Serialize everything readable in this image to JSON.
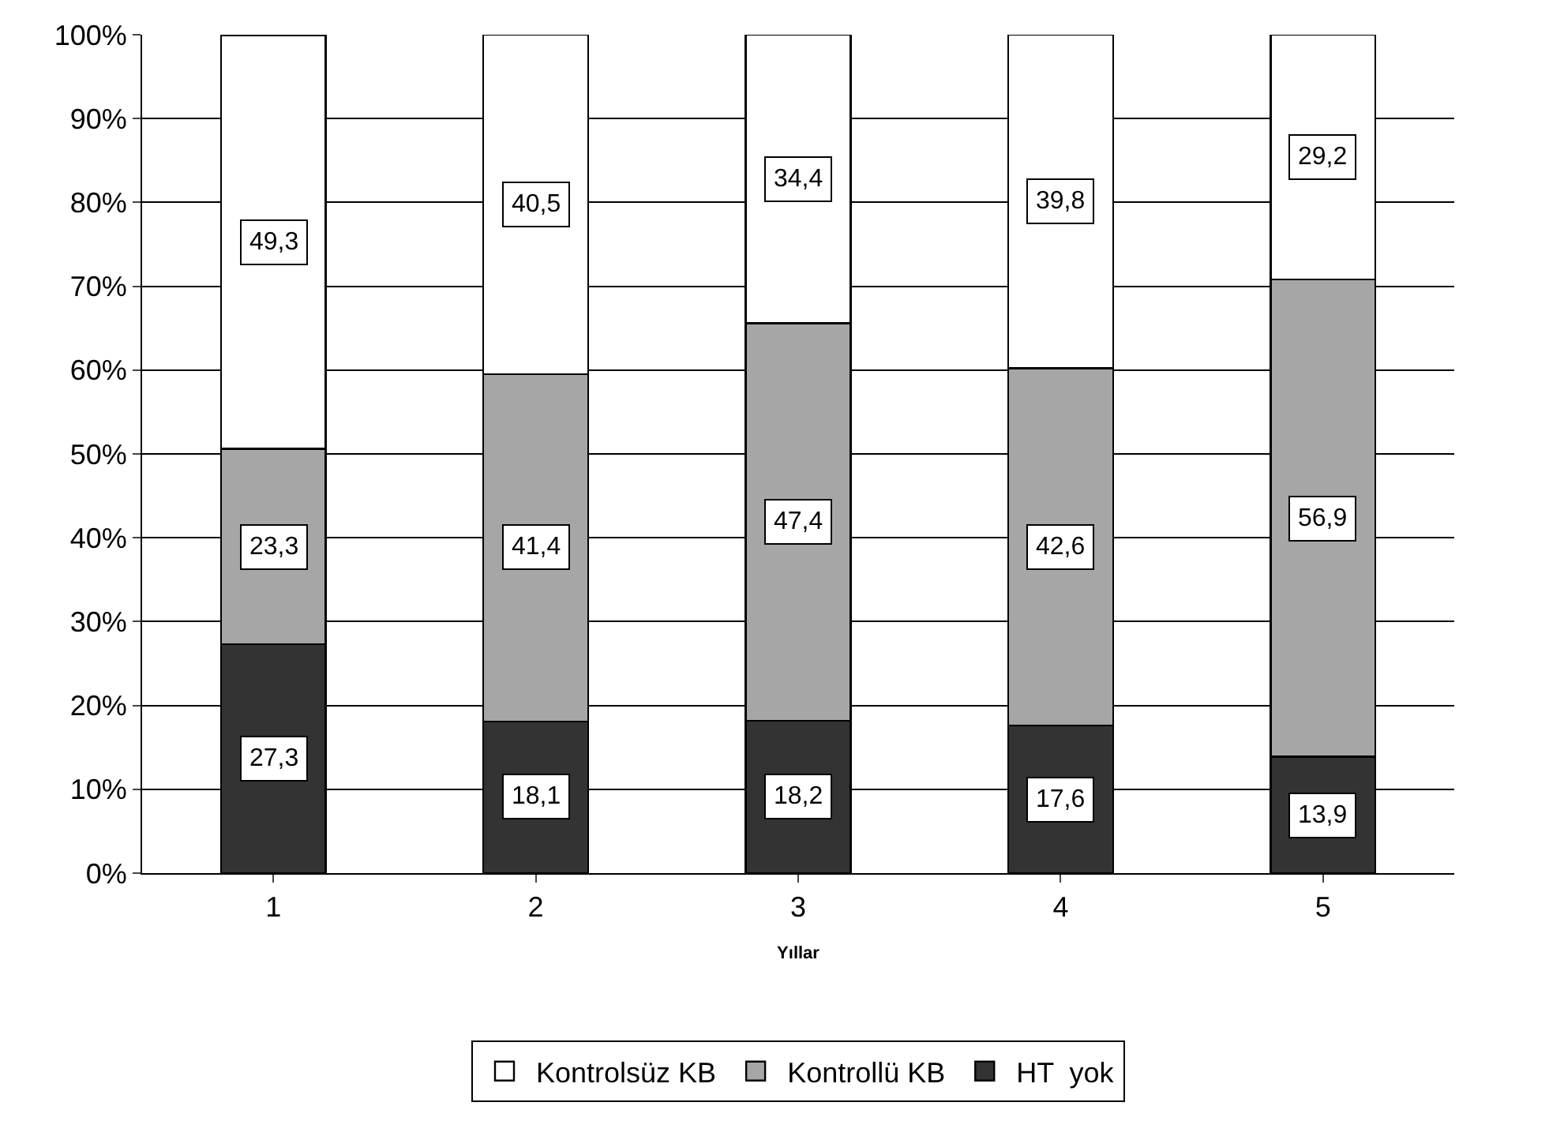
{
  "chart_data": {
    "type": "bar",
    "stacked": true,
    "xlabel": "Yıllar",
    "categories": [
      "1",
      "2",
      "3",
      "4",
      "5"
    ],
    "ylim": [
      0,
      100
    ],
    "yticks": [
      {
        "value": 0,
        "label": "0%"
      },
      {
        "value": 10,
        "label": "10%"
      },
      {
        "value": 20,
        "label": "20%"
      },
      {
        "value": 30,
        "label": "30%"
      },
      {
        "value": 40,
        "label": "40%"
      },
      {
        "value": 50,
        "label": "50%"
      },
      {
        "value": 60,
        "label": "60%"
      },
      {
        "value": 70,
        "label": "70%"
      },
      {
        "value": 80,
        "label": "80%"
      },
      {
        "value": 90,
        "label": "90%"
      },
      {
        "value": 100,
        "label": "100%"
      }
    ],
    "grid": "y",
    "legend": "bottom",
    "series": [
      {
        "name": "HT  yok",
        "color": "#333333",
        "values": [
          27.3,
          18.1,
          18.2,
          17.6,
          13.9
        ],
        "value_labels": [
          "27,3",
          "18,1",
          "18,2",
          "17,6",
          "13,9"
        ]
      },
      {
        "name": "Kontrollü KB",
        "color": "#a6a6a6",
        "values": [
          23.3,
          41.4,
          47.4,
          42.6,
          56.9
        ],
        "value_labels": [
          "23,3",
          "41,4",
          "47,4",
          "42,6",
          "56,9"
        ]
      },
      {
        "name": "Kontrolsüz KB",
        "color": "#ffffff",
        "values": [
          49.3,
          40.5,
          34.4,
          39.8,
          29.2
        ],
        "value_labels": [
          "49,3",
          "40,5",
          "34,4",
          "39,8",
          "29,2"
        ]
      }
    ]
  }
}
